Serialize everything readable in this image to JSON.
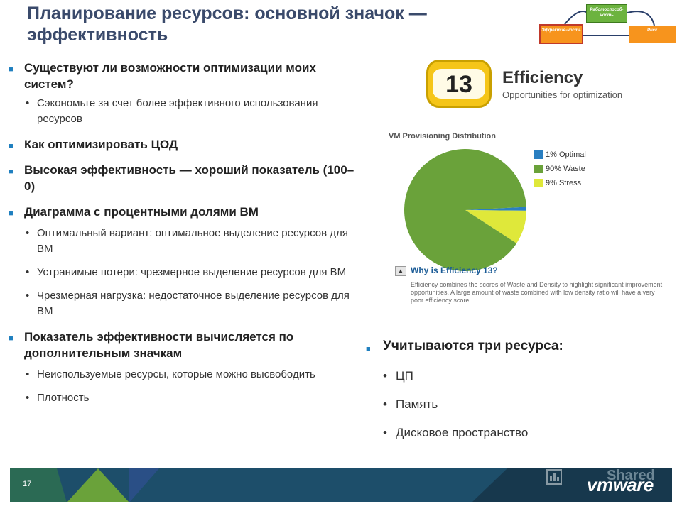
{
  "slide": {
    "title": "Планирование ресурсов: основной значок — эффективность",
    "page_number": "17"
  },
  "mini_diagram": {
    "top_box": "Работоспособ-ность",
    "left_box": "Эффектив-ность",
    "right_box": "Риск"
  },
  "left_content": {
    "b1": "Существуют ли возможности оптимизации моих систем?",
    "b1_s1": "Сэкономьте за счет более эффективного использования ресурсов",
    "b2": "Как оптимизировать ЦОД",
    "b3": "Высокая эффективность — хороший показатель (100–0)",
    "b4": "Диаграмма с процентными долями ВМ",
    "b4_s1": "Оптимальный вариант: оптимальное выделение ресурсов для ВМ",
    "b4_s2": "Устранимые потери: чрезмерное выделение ресурсов для ВМ",
    "b4_s3": "Чрезмерная нагрузка: недостаточное выделение ресурсов для ВМ",
    "b5": "Показатель эффективности вычисляется по дополнительным значкам",
    "b5_s1": "Неиспользуемые ресурсы, которые можно высвободить",
    "b5_s2": "Плотность"
  },
  "badge": {
    "score": "13",
    "title": "Efficiency",
    "subtitle": "Opportunities for optimization"
  },
  "chart_data": {
    "type": "pie",
    "title": "VM Provisioning Distribution",
    "slices": [
      {
        "label": "1% Optimal",
        "value": 1,
        "color": "#2a7fc1"
      },
      {
        "label": "90% Waste",
        "value": 90,
        "color": "#6aa23a"
      },
      {
        "label": "9% Stress",
        "value": 9,
        "color": "#dfe83a"
      }
    ],
    "legend_position": "right"
  },
  "why": {
    "toggle": "▲",
    "title": "Why is Efficiency 13?",
    "text": "Efficiency combines the scores of Waste and Density to highlight significant improvement opportunities. A large amount of waste combined with low density ratio will have a very poor efficiency score."
  },
  "right_content": {
    "heading": "Учитываются три ресурса:",
    "items": [
      "ЦП",
      "Память",
      "Дисковое пространство"
    ]
  },
  "footer": {
    "logo": "vmware",
    "watermark": "Shared"
  },
  "colors": {
    "title": "#3a4a6b",
    "bullet": "#1f7fbf",
    "footer": "#1d4e6a",
    "footer_green": "#6aa23a"
  }
}
